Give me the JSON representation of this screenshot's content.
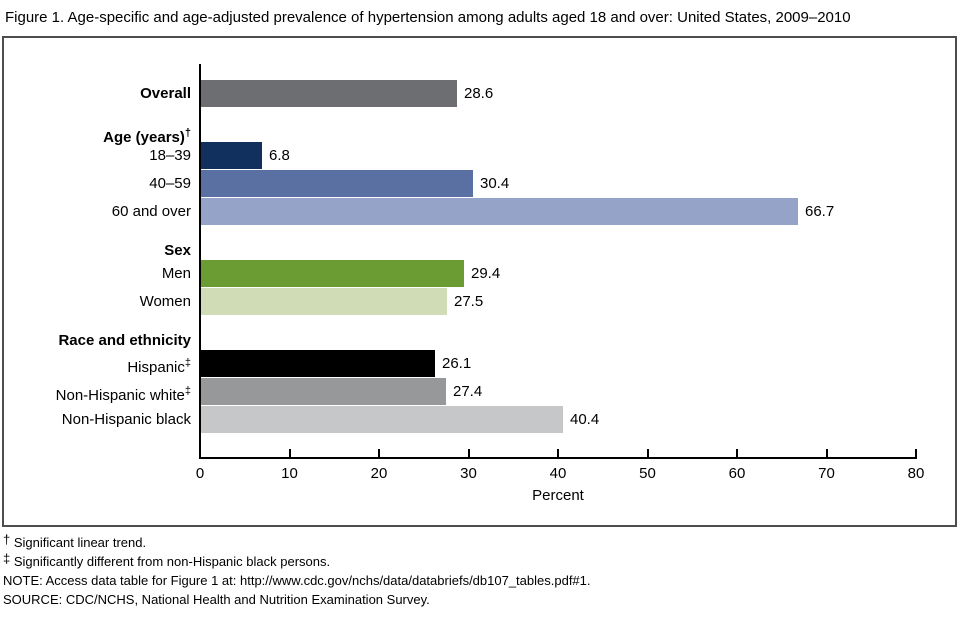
{
  "chart_data": {
    "type": "bar",
    "orientation": "horizontal",
    "title": "Figure 1. Age-specific and age-adjusted prevalence of hypertension among adults aged 18 and over: United States, 2009–2010",
    "xlabel": "Percent",
    "xlim": [
      0,
      80
    ],
    "xticks": [
      0,
      10,
      20,
      30,
      40,
      50,
      60,
      70,
      80
    ],
    "grid": false,
    "legend": "none",
    "value_suffix": "",
    "rows": [
      {
        "kind": "bar",
        "label": "Overall",
        "label_sup": "",
        "label_bold": true,
        "value": 28.6,
        "color": "#6d6e71"
      },
      {
        "kind": "spacer"
      },
      {
        "kind": "header",
        "label": "Age (years)",
        "label_sup": "†"
      },
      {
        "kind": "bar",
        "label": "18–39",
        "label_sup": "",
        "label_bold": false,
        "value": 6.8,
        "color": "#12305e"
      },
      {
        "kind": "bar",
        "label": "40–59",
        "label_sup": "",
        "label_bold": false,
        "value": 30.4,
        "color": "#5a70a2"
      },
      {
        "kind": "bar",
        "label": "60 and over",
        "label_sup": "",
        "label_bold": false,
        "value": 66.7,
        "color": "#95a3c8"
      },
      {
        "kind": "spacer"
      },
      {
        "kind": "header",
        "label": "Sex",
        "label_sup": ""
      },
      {
        "kind": "bar",
        "label": "Men",
        "label_sup": "",
        "label_bold": false,
        "value": 29.4,
        "color": "#6a9c33"
      },
      {
        "kind": "bar",
        "label": "Women",
        "label_sup": "",
        "label_bold": false,
        "value": 27.5,
        "color": "#cfdcb5"
      },
      {
        "kind": "spacer"
      },
      {
        "kind": "header",
        "label": "Race and ethnicity",
        "label_sup": ""
      },
      {
        "kind": "bar",
        "label": "Hispanic",
        "label_sup": "‡",
        "label_bold": false,
        "value": 26.1,
        "color": "#000000"
      },
      {
        "kind": "bar",
        "label": "Non-Hispanic white",
        "label_sup": "‡",
        "label_bold": false,
        "value": 27.4,
        "color": "#97989a"
      },
      {
        "kind": "bar",
        "label": "Non-Hispanic black",
        "label_sup": "",
        "label_bold": false,
        "value": 40.4,
        "color": "#c6c7c9"
      }
    ]
  },
  "footnotes": [
    {
      "sup": "†",
      "text": "Significant linear trend."
    },
    {
      "sup": "‡",
      "text": "Significantly different from non-Hispanic black persons."
    },
    {
      "sup": "",
      "text": "NOTE: Access data table for Figure 1 at: http://www.cdc.gov/nchs/data/databriefs/db107_tables.pdf#1."
    },
    {
      "sup": "",
      "text": "SOURCE: CDC/NCHS, National Health and Nutrition Examination Survey."
    }
  ]
}
